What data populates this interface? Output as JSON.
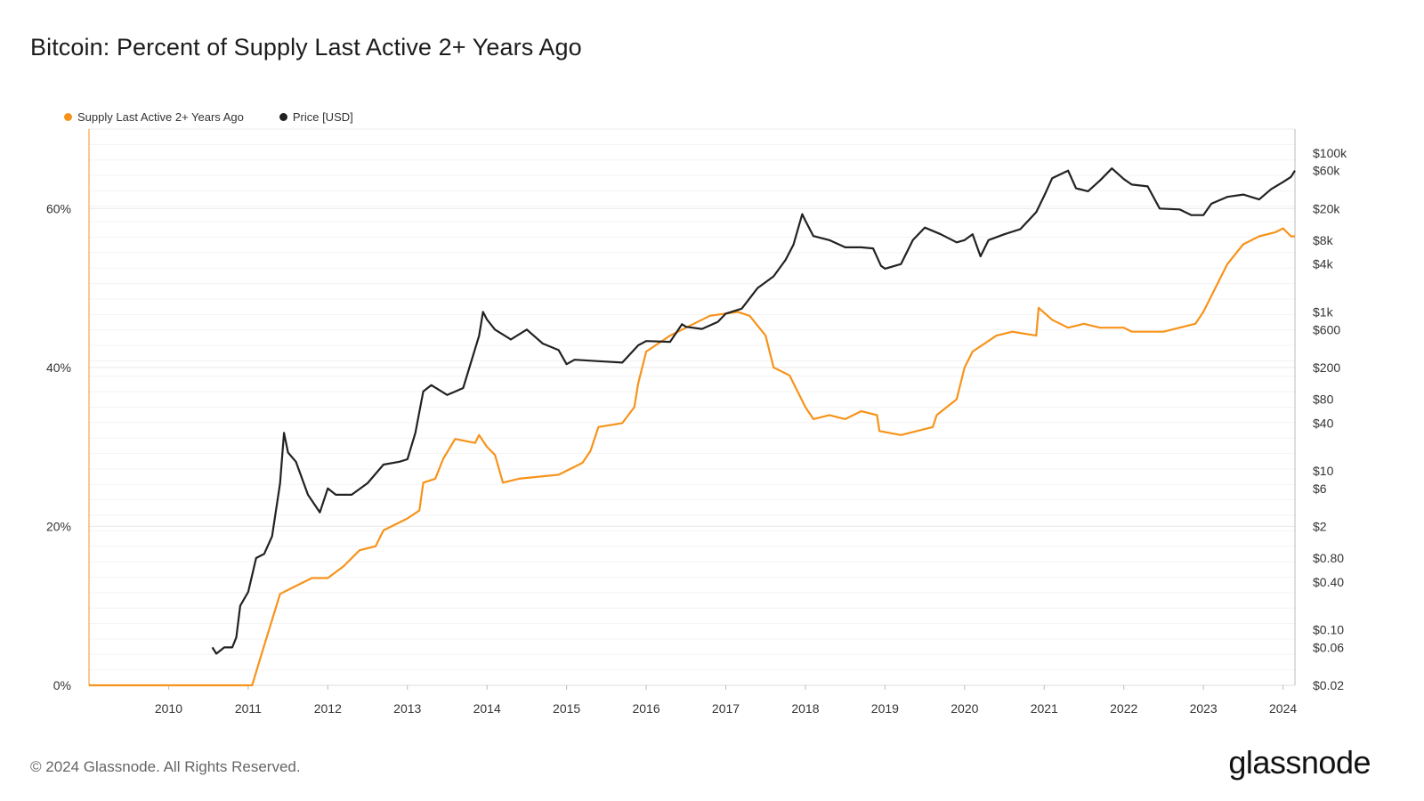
{
  "title": "Bitcoin: Percent of Supply Last Active 2+ Years Ago",
  "footer": "© 2024 Glassnode. All Rights Reserved.",
  "brand": "glassnode",
  "colors": {
    "supply": "#f7931a",
    "price": "#222222",
    "grid": "#e8e8e8",
    "axis": "#cccccc"
  },
  "chart_data": {
    "type": "line",
    "title": "Bitcoin: Percent of Supply Last Active 2+ Years Ago",
    "x_range": [
      2009.0,
      2024.15
    ],
    "x_ticks": [
      "2010",
      "2011",
      "2012",
      "2013",
      "2014",
      "2015",
      "2016",
      "2017",
      "2018",
      "2019",
      "2020",
      "2021",
      "2022",
      "2023",
      "2024"
    ],
    "y_left": {
      "range": [
        0,
        70
      ],
      "ticks": [
        0,
        20,
        40,
        60
      ],
      "tick_labels": [
        "0%",
        "20%",
        "40%",
        "60%"
      ]
    },
    "y_right": {
      "scale": "log",
      "range": [
        0.02,
        200000
      ],
      "ticks": [
        0.02,
        0.06,
        0.1,
        0.4,
        0.8,
        2,
        6,
        10,
        40,
        80,
        200,
        600,
        1000,
        4000,
        8000,
        20000,
        60000,
        100000
      ],
      "tick_labels": [
        "$0.02",
        "$0.06",
        "$0.10",
        "$0.40",
        "$0.80",
        "$2",
        "$6",
        "$10",
        "$40",
        "$80",
        "$200",
        "$600",
        "$1k",
        "$4k",
        "$8k",
        "$20k",
        "$60k",
        "$100k"
      ]
    },
    "legend_position": "top-left",
    "grid": true,
    "series": [
      {
        "name": "Supply Last Active 2+ Years Ago",
        "axis": "left",
        "unit": "%",
        "points": [
          [
            2009.0,
            0
          ],
          [
            2011.05,
            0
          ],
          [
            2011.2,
            5
          ],
          [
            2011.4,
            11.5
          ],
          [
            2011.6,
            12.5
          ],
          [
            2011.8,
            13.5
          ],
          [
            2012.0,
            13.5
          ],
          [
            2012.2,
            15
          ],
          [
            2012.4,
            17
          ],
          [
            2012.6,
            17.5
          ],
          [
            2012.7,
            19.5
          ],
          [
            2012.9,
            20.5
          ],
          [
            2013.0,
            21
          ],
          [
            2013.15,
            22
          ],
          [
            2013.2,
            25.5
          ],
          [
            2013.35,
            26
          ],
          [
            2013.45,
            28.5
          ],
          [
            2013.6,
            31
          ],
          [
            2013.85,
            30.5
          ],
          [
            2013.9,
            31.5
          ],
          [
            2014.0,
            30
          ],
          [
            2014.1,
            29
          ],
          [
            2014.2,
            25.5
          ],
          [
            2014.4,
            26
          ],
          [
            2014.9,
            26.5
          ],
          [
            2015.2,
            28
          ],
          [
            2015.3,
            29.5
          ],
          [
            2015.4,
            32.5
          ],
          [
            2015.7,
            33
          ],
          [
            2015.85,
            35
          ],
          [
            2015.9,
            38
          ],
          [
            2016.0,
            42
          ],
          [
            2016.3,
            44
          ],
          [
            2016.5,
            45
          ],
          [
            2016.8,
            46.5
          ],
          [
            2017.15,
            47
          ],
          [
            2017.3,
            46.5
          ],
          [
            2017.5,
            44
          ],
          [
            2017.6,
            40
          ],
          [
            2017.8,
            39
          ],
          [
            2018.0,
            35
          ],
          [
            2018.1,
            33.5
          ],
          [
            2018.3,
            34
          ],
          [
            2018.5,
            33.5
          ],
          [
            2018.7,
            34.5
          ],
          [
            2018.9,
            34
          ],
          [
            2018.93,
            32
          ],
          [
            2019.2,
            31.5
          ],
          [
            2019.6,
            32.5
          ],
          [
            2019.65,
            34
          ],
          [
            2019.9,
            36
          ],
          [
            2020.0,
            40
          ],
          [
            2020.1,
            42
          ],
          [
            2020.4,
            44
          ],
          [
            2020.6,
            44.5
          ],
          [
            2020.9,
            44
          ],
          [
            2020.93,
            47.5
          ],
          [
            2021.1,
            46
          ],
          [
            2021.3,
            45
          ],
          [
            2021.5,
            45.5
          ],
          [
            2021.7,
            45
          ],
          [
            2022.0,
            45
          ],
          [
            2022.1,
            44.5
          ],
          [
            2022.3,
            44.5
          ],
          [
            2022.5,
            44.5
          ],
          [
            2022.7,
            45
          ],
          [
            2022.9,
            45.5
          ],
          [
            2023.0,
            47
          ],
          [
            2023.1,
            49
          ],
          [
            2023.3,
            53
          ],
          [
            2023.5,
            55.5
          ],
          [
            2023.7,
            56.5
          ],
          [
            2023.9,
            57
          ],
          [
            2024.0,
            57.5
          ],
          [
            2024.05,
            57
          ],
          [
            2024.1,
            56.5
          ],
          [
            2024.15,
            56.5
          ]
        ]
      },
      {
        "name": "Price [USD]",
        "axis": "right",
        "unit": "USD",
        "points": [
          [
            2010.55,
            0.06
          ],
          [
            2010.6,
            0.05
          ],
          [
            2010.7,
            0.06
          ],
          [
            2010.8,
            0.06
          ],
          [
            2010.85,
            0.08
          ],
          [
            2010.9,
            0.2
          ],
          [
            2011.0,
            0.3
          ],
          [
            2011.1,
            0.8
          ],
          [
            2011.2,
            0.9
          ],
          [
            2011.3,
            1.5
          ],
          [
            2011.4,
            7
          ],
          [
            2011.45,
            30
          ],
          [
            2011.5,
            17
          ],
          [
            2011.6,
            13
          ],
          [
            2011.75,
            5
          ],
          [
            2011.9,
            3
          ],
          [
            2012.0,
            6
          ],
          [
            2012.1,
            5
          ],
          [
            2012.3,
            5
          ],
          [
            2012.5,
            7
          ],
          [
            2012.7,
            12
          ],
          [
            2012.9,
            13
          ],
          [
            2013.0,
            14
          ],
          [
            2013.1,
            30
          ],
          [
            2013.2,
            100
          ],
          [
            2013.3,
            120
          ],
          [
            2013.5,
            90
          ],
          [
            2013.7,
            110
          ],
          [
            2013.9,
            500
          ],
          [
            2013.95,
            1000
          ],
          [
            2014.0,
            800
          ],
          [
            2014.1,
            600
          ],
          [
            2014.3,
            450
          ],
          [
            2014.5,
            600
          ],
          [
            2014.7,
            400
          ],
          [
            2014.9,
            330
          ],
          [
            2015.0,
            220
          ],
          [
            2015.1,
            250
          ],
          [
            2015.4,
            240
          ],
          [
            2015.7,
            230
          ],
          [
            2015.9,
            380
          ],
          [
            2016.0,
            430
          ],
          [
            2016.3,
            420
          ],
          [
            2016.45,
            700
          ],
          [
            2016.5,
            650
          ],
          [
            2016.7,
            610
          ],
          [
            2016.9,
            750
          ],
          [
            2017.0,
            950
          ],
          [
            2017.2,
            1100
          ],
          [
            2017.4,
            2000
          ],
          [
            2017.6,
            2800
          ],
          [
            2017.75,
            4500
          ],
          [
            2017.85,
            7000
          ],
          [
            2017.96,
            17000
          ],
          [
            2018.0,
            14000
          ],
          [
            2018.1,
            9000
          ],
          [
            2018.3,
            8000
          ],
          [
            2018.5,
            6500
          ],
          [
            2018.7,
            6500
          ],
          [
            2018.85,
            6300
          ],
          [
            2018.95,
            3800
          ],
          [
            2019.0,
            3500
          ],
          [
            2019.2,
            4000
          ],
          [
            2019.35,
            8000
          ],
          [
            2019.5,
            11500
          ],
          [
            2019.7,
            9500
          ],
          [
            2019.9,
            7500
          ],
          [
            2020.0,
            8000
          ],
          [
            2020.1,
            9500
          ],
          [
            2020.2,
            5000
          ],
          [
            2020.3,
            8000
          ],
          [
            2020.5,
            9500
          ],
          [
            2020.7,
            11000
          ],
          [
            2020.9,
            18000
          ],
          [
            2021.0,
            29000
          ],
          [
            2021.1,
            48000
          ],
          [
            2021.3,
            60000
          ],
          [
            2021.4,
            36000
          ],
          [
            2021.55,
            33000
          ],
          [
            2021.7,
            45000
          ],
          [
            2021.85,
            64000
          ],
          [
            2022.0,
            47000
          ],
          [
            2022.1,
            40000
          ],
          [
            2022.3,
            38000
          ],
          [
            2022.45,
            20000
          ],
          [
            2022.7,
            19500
          ],
          [
            2022.85,
            16500
          ],
          [
            2023.0,
            16500
          ],
          [
            2023.1,
            23000
          ],
          [
            2023.3,
            28000
          ],
          [
            2023.5,
            30000
          ],
          [
            2023.7,
            26000
          ],
          [
            2023.85,
            35000
          ],
          [
            2024.0,
            43000
          ],
          [
            2024.1,
            50000
          ],
          [
            2024.15,
            60000
          ]
        ]
      }
    ]
  }
}
